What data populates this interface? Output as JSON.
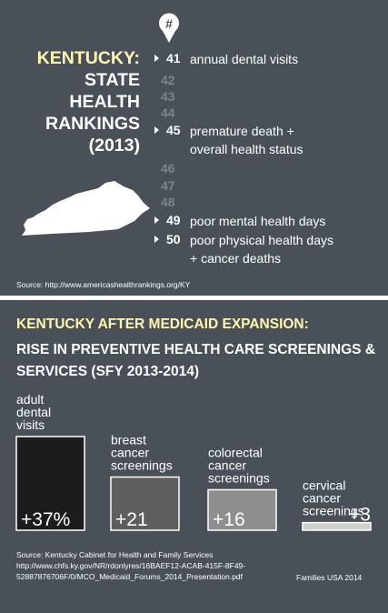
{
  "top": {
    "title_lines": [
      "KENTUCKY:",
      "STATE",
      "HEALTH",
      "RANKINGS",
      "(2013)"
    ],
    "pin_symbol": "#",
    "rankings": [
      {
        "num": "41",
        "desc": "annual dental visits",
        "highlight": true
      },
      {
        "num": "42",
        "desc": "",
        "highlight": false
      },
      {
        "num": "43",
        "desc": "",
        "highlight": false
      },
      {
        "num": "44",
        "desc": "",
        "highlight": false
      },
      {
        "num": "45",
        "desc": "premature death +",
        "desc2": "overall health status",
        "highlight": true
      },
      {
        "num": "46",
        "desc": "",
        "highlight": false
      },
      {
        "num": "47",
        "desc": "",
        "highlight": false
      },
      {
        "num": "48",
        "desc": "",
        "highlight": false
      },
      {
        "num": "49",
        "desc": "poor mental health days",
        "highlight": true
      },
      {
        "num": "50",
        "desc": "poor physical health days",
        "desc2": "+ cancer deaths",
        "highlight": true
      }
    ],
    "source": "Source: http://www.americashealthrankings.org/KY"
  },
  "bottom": {
    "heading1": "KENTUCKY AFTER MEDICAID EXPANSION:",
    "heading2": "RISE IN PREVENTIVE HEALTH CARE SCREENINGS & SERVICES (SFY 2013-2014)",
    "source_lines": [
      "Source: Kentucky Cabinet for Health and Family Services",
      "http://www.chfs.ky.gov/NR/rdonlyres/16BAEF12-ACAB-415F-8F49-",
      "52887876706F/0/MCO_Medicaid_Forums_2014_Presentation.pdf"
    ],
    "credit": "Families USA 2014"
  },
  "colors": {
    "background": "#4a5058",
    "highlight_text": "#fff7b0",
    "bar_colors": [
      "#1c1c1c",
      "#5e5e5e",
      "#8e8e8e",
      "#cfcfcf"
    ]
  },
  "chart_data": {
    "type": "bar",
    "categories": [
      "adult dental visits",
      "breast cancer screenings",
      "colorectal cancer screenings",
      "cervical cancer screenings"
    ],
    "category_lines": [
      [
        "adult",
        "dental",
        "visits"
      ],
      [
        "breast",
        "cancer",
        "screenings"
      ],
      [
        "colorectal",
        "cancer",
        "screenings"
      ],
      [
        "cervical",
        "cancer",
        "screenings"
      ]
    ],
    "values": [
      37,
      21,
      16,
      3
    ],
    "value_labels": [
      "+37%",
      "+21",
      "+16",
      "+3"
    ],
    "ylim": [
      0,
      37
    ]
  }
}
